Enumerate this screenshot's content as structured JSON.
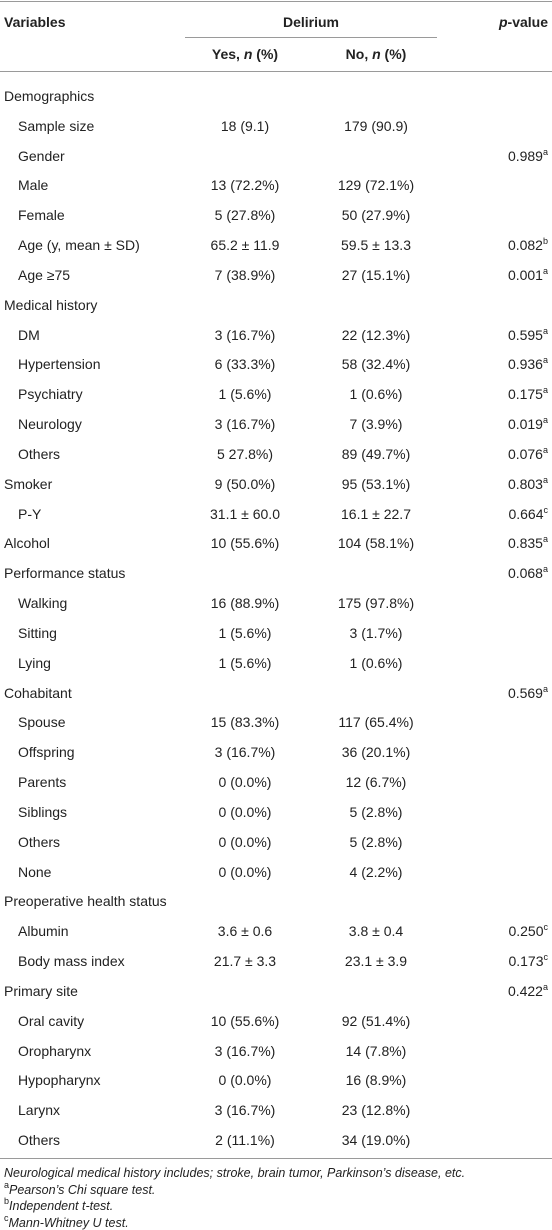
{
  "table": {
    "header": {
      "variables": "Variables",
      "group": "Delirium",
      "yes": [
        "Yes, ",
        "n",
        " (%)"
      ],
      "no": [
        "No, ",
        "n",
        " (%)"
      ],
      "pvalue": [
        "p",
        "-value"
      ]
    },
    "rows": [
      {
        "label": "Demographics",
        "level": 0
      },
      {
        "label": "Sample size",
        "level": 1,
        "yes": "18 (9.1)",
        "no": "179 (90.9)"
      },
      {
        "label": "Gender",
        "level": 1,
        "p": "0.989",
        "note": "a"
      },
      {
        "label": "Male",
        "level": 1,
        "yes": "13 (72.2%)",
        "no": "129 (72.1%)"
      },
      {
        "label": "Female",
        "level": 1,
        "yes": "5 (27.8%)",
        "no": "50 (27.9%)"
      },
      {
        "label": "Age (y, mean ± SD)",
        "level": 1,
        "yes": "65.2 ± 11.9",
        "no": "59.5 ± 13.3",
        "p": "0.082",
        "note": "b"
      },
      {
        "label": "Age ≥75",
        "level": 1,
        "yes": "7 (38.9%)",
        "no": "27 (15.1%)",
        "p": "0.001",
        "note": "a"
      },
      {
        "label": "Medical history",
        "level": 0
      },
      {
        "label": "DM",
        "level": 1,
        "yes": "3 (16.7%)",
        "no": "22 (12.3%)",
        "p": "0.595",
        "note": "a"
      },
      {
        "label": "Hypertension",
        "level": 1,
        "yes": "6 (33.3%)",
        "no": "58 (32.4%)",
        "p": "0.936",
        "note": "a"
      },
      {
        "label": "Psychiatry",
        "level": 1,
        "yes": "1 (5.6%)",
        "no": "1 (0.6%)",
        "p": "0.175",
        "note": "a"
      },
      {
        "label": "Neurology",
        "level": 1,
        "yes": "3 (16.7%)",
        "no": "7 (3.9%)",
        "p": "0.019",
        "note": "a"
      },
      {
        "label": "Others",
        "level": 1,
        "yes": "5 27.8%)",
        "no": "89 (49.7%)",
        "p": "0.076",
        "note": "a"
      },
      {
        "label": "Smoker",
        "level": 0,
        "yes": "9 (50.0%)",
        "no": "95 (53.1%)",
        "p": "0.803",
        "note": "a"
      },
      {
        "label": "P-Y",
        "level": 1,
        "yes": "31.1 ± 60.0",
        "no": "16.1 ± 22.7",
        "p": "0.664",
        "note": "c"
      },
      {
        "label": "Alcohol",
        "level": 0,
        "yes": "10 (55.6%)",
        "no": "104 (58.1%)",
        "p": "0.835",
        "note": "a"
      },
      {
        "label": "Performance status",
        "level": 0,
        "p": "0.068",
        "note": "a"
      },
      {
        "label": "Walking",
        "level": 1,
        "yes": "16 (88.9%)",
        "no": "175 (97.8%)"
      },
      {
        "label": "Sitting",
        "level": 1,
        "yes": "1 (5.6%)",
        "no": "3 (1.7%)"
      },
      {
        "label": "Lying",
        "level": 1,
        "yes": "1 (5.6%)",
        "no": "1 (0.6%)"
      },
      {
        "label": "Cohabitant",
        "level": 0,
        "p": "0.569",
        "note": "a"
      },
      {
        "label": "Spouse",
        "level": 1,
        "yes": "15 (83.3%)",
        "no": "117 (65.4%)"
      },
      {
        "label": "Offspring",
        "level": 1,
        "yes": "3 (16.7%)",
        "no": "36 (20.1%)"
      },
      {
        "label": "Parents",
        "level": 1,
        "yes": "0 (0.0%)",
        "no": "12 (6.7%)"
      },
      {
        "label": "Siblings",
        "level": 1,
        "yes": "0 (0.0%)",
        "no": "5 (2.8%)"
      },
      {
        "label": "Others",
        "level": 1,
        "yes": "0 (0.0%)",
        "no": "5 (2.8%)"
      },
      {
        "label": "None",
        "level": 1,
        "yes": "0 (0.0%)",
        "no": "4 (2.2%)"
      },
      {
        "label": "Preoperative health status",
        "level": 0
      },
      {
        "label": "Albumin",
        "level": 1,
        "yes": "3.6 ± 0.6",
        "no": "3.8 ± 0.4",
        "p": "0.250",
        "note": "c"
      },
      {
        "label": "Body mass index",
        "level": 1,
        "yes": "21.7 ± 3.3",
        "no": "23.1 ± 3.9",
        "p": "0.173",
        "note": "c"
      },
      {
        "label": "Primary site",
        "level": 0,
        "p": "0.422",
        "note": "a"
      },
      {
        "label": "Oral cavity",
        "level": 1,
        "yes": "10 (55.6%)",
        "no": "92 (51.4%)"
      },
      {
        "label": "Oropharynx",
        "level": 1,
        "yes": "3 (16.7%)",
        "no": "14 (7.8%)"
      },
      {
        "label": "Hypopharynx",
        "level": 1,
        "yes": "0 (0.0%)",
        "no": "16 (8.9%)"
      },
      {
        "label": "Larynx",
        "level": 1,
        "yes": "3 (16.7%)",
        "no": "23 (12.8%)"
      },
      {
        "label": "Others",
        "level": 1,
        "yes": "2 (11.1%)",
        "no": "34 (19.0%)"
      }
    ],
    "footnotes": [
      {
        "text": "Neurological medical history includes; stroke, brain tumor, Parkinson’s disease, etc."
      },
      {
        "mark": "a",
        "text": "Pearson’s Chi square test."
      },
      {
        "mark": "b",
        "text": "Independent t-test."
      },
      {
        "mark": "c",
        "text": "Mann-Whitney U test."
      }
    ]
  }
}
